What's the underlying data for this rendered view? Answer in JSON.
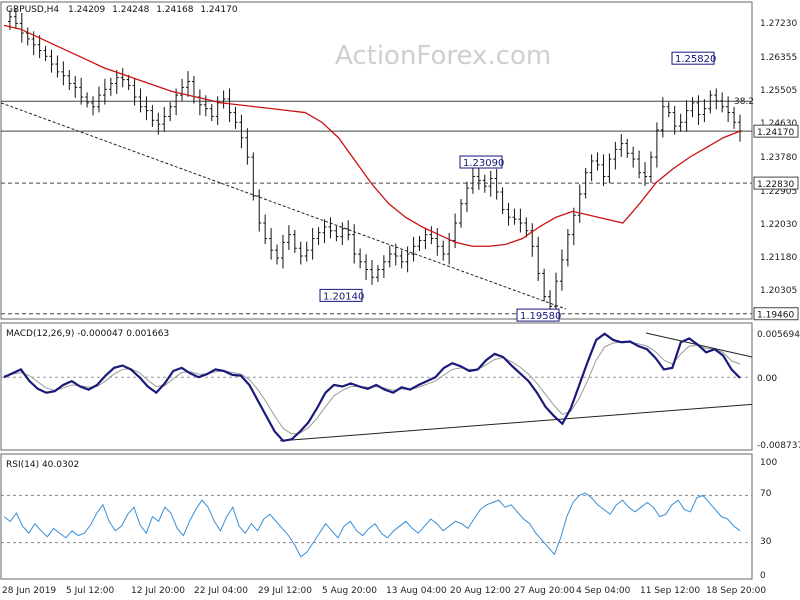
{
  "chart_data": [
    {
      "type": "candlestick",
      "title": "GBPUSD,H4",
      "ohlc_readout": [
        "1.24209",
        "1.24248",
        "1.24168",
        "1.24170"
      ],
      "watermark": "ActionForex.com",
      "ylim": [
        1.1935,
        1.2745
      ],
      "y_ticks": [
        "1.27230",
        "1.26355",
        "1.25505",
        "1.24630",
        "1.23780",
        "1.22905",
        "1.22030",
        "1.21180",
        "1.20305",
        "1.19460"
      ],
      "x_ticks": [
        "28 Jun 2019",
        "5 Jul 12:00",
        "12 Jul 20:00",
        "22 Jul 04:00",
        "29 Jul 12:00",
        "5 Aug 20:00",
        "13 Aug 04:00",
        "20 Aug 12:00",
        "27 Aug 20:00",
        "4 Sep 04:00",
        "11 Sep 12:00",
        "18 Sep 20:00"
      ],
      "price_boxes": [
        {
          "label": "1.24170",
          "value": 1.2417
        },
        {
          "label": "1.22830",
          "value": 1.2283
        },
        {
          "label": "1.19460",
          "value": 1.1946
        }
      ],
      "callouts": [
        {
          "label": "1.25820",
          "value": 1.2582
        },
        {
          "label": "1.23090",
          "value": 1.2309
        },
        {
          "label": "1.20140",
          "value": 1.2014
        },
        {
          "label": "1.19580",
          "value": 1.1958
        }
      ],
      "fib_label": "38.2",
      "horizontal_lines": [
        {
          "value": 1.2494,
          "style": "solid"
        },
        {
          "value": 1.2417,
          "style": "solid"
        },
        {
          "value": 1.2283,
          "style": "dashed"
        },
        {
          "value": 1.1946,
          "style": "dashed"
        }
      ],
      "close_path": [
        1.27,
        1.2712,
        1.2695,
        1.267,
        1.2655,
        1.264,
        1.2625,
        1.261,
        1.259,
        1.257,
        1.256,
        1.254,
        1.253,
        1.2505,
        1.249,
        1.248,
        1.251,
        1.2525,
        1.254,
        1.2555,
        1.255,
        1.2535,
        1.2505,
        1.248,
        1.247,
        1.2445,
        1.2435,
        1.2455,
        1.248,
        1.251,
        1.253,
        1.2545,
        1.2505,
        1.2485,
        1.2475,
        1.2455,
        1.249,
        1.25,
        1.2465,
        1.244,
        1.24,
        1.235,
        1.225,
        1.218,
        1.214,
        1.211,
        1.209,
        1.213,
        1.215,
        1.2115,
        1.2095,
        1.211,
        1.214,
        1.2155,
        1.217,
        1.216,
        1.2145,
        1.2165,
        1.215,
        1.21,
        1.208,
        1.206,
        1.204,
        1.206,
        1.208,
        1.21,
        1.2095,
        1.208,
        1.21,
        1.212,
        1.2135,
        1.215,
        1.214,
        1.212,
        1.21,
        1.2135,
        1.218,
        1.223,
        1.227,
        1.23,
        1.229,
        1.2275,
        1.2295,
        1.226,
        1.2215,
        1.2195,
        1.219,
        1.218,
        1.216,
        1.212,
        1.205,
        1.199,
        1.1965,
        1.203,
        1.2085,
        1.215,
        1.22,
        1.2255,
        1.231,
        1.234,
        1.233,
        1.23,
        1.2345,
        1.237,
        1.2385,
        1.236,
        1.2345,
        1.231,
        1.23,
        1.235,
        1.242,
        1.248,
        1.2465,
        1.243,
        1.244,
        1.247,
        1.249,
        1.246,
        1.2475,
        1.251,
        1.2495,
        1.248,
        1.2465,
        1.244,
        1.2417
      ],
      "moving_average": [
        1.269,
        1.268,
        1.266,
        1.264,
        1.262,
        1.26,
        1.258,
        1.2565,
        1.255,
        1.2535,
        1.252,
        1.251,
        1.25,
        1.249,
        1.2485,
        1.248,
        1.2475,
        1.247,
        1.2465,
        1.244,
        1.24,
        1.234,
        1.228,
        1.223,
        1.2195,
        1.217,
        1.215,
        1.213,
        1.212,
        1.212,
        1.2125,
        1.214,
        1.217,
        1.2195,
        1.221,
        1.22,
        1.219,
        1.218,
        1.223,
        1.2285,
        1.232,
        1.235,
        1.2375,
        1.24,
        1.2417
      ]
    },
    {
      "type": "line",
      "title": "MACD(12,26,9) -0.000047 0.001663",
      "ylim": [
        -0.008737,
        0.005694
      ],
      "y_ticks": [
        "0.005694",
        "0.00",
        "-0.008737"
      ],
      "current_value_label": "0.00",
      "zero_line": 0.0,
      "macd": [
        0.0,
        0.0005,
        0.001,
        -0.0005,
        -0.0015,
        -0.002,
        -0.0018,
        -0.001,
        -0.0005,
        -0.0012,
        -0.0016,
        -0.001,
        0.0002,
        0.0012,
        0.0015,
        0.001,
        0.0,
        -0.0012,
        -0.002,
        -0.0008,
        0.0008,
        0.0012,
        0.0005,
        0.0,
        0.0004,
        0.001,
        0.0008,
        0.0003,
        0.0002,
        -0.001,
        -0.003,
        -0.005,
        -0.007,
        -0.0082,
        -0.008,
        -0.007,
        -0.0058,
        -0.004,
        -0.002,
        -0.001,
        -0.0012,
        -0.0008,
        -0.0012,
        -0.0015,
        -0.001,
        -0.0016,
        -0.002,
        -0.0013,
        -0.0016,
        -0.001,
        -0.0005,
        0.0,
        0.0012,
        0.0018,
        0.0014,
        0.0008,
        0.001,
        0.0022,
        0.003,
        0.0026,
        0.0015,
        0.0005,
        -0.0005,
        -0.002,
        -0.0038,
        -0.005,
        -0.006,
        -0.004,
        -0.001,
        0.002,
        0.0048,
        0.0056,
        0.0048,
        0.0045,
        0.0046,
        0.004,
        0.0036,
        0.0025,
        0.001,
        0.0012,
        0.0045,
        0.005,
        0.0042,
        0.0032,
        0.0036,
        0.0028,
        0.001,
        -0.0001
      ],
      "signal": [
        0.0002,
        0.0004,
        0.0006,
        0.0002,
        -0.0006,
        -0.0014,
        -0.0017,
        -0.0014,
        -0.001,
        -0.0011,
        -0.0013,
        -0.0012,
        -0.0005,
        0.0004,
        0.001,
        0.0011,
        0.0006,
        -0.0004,
        -0.0012,
        -0.0011,
        -0.0002,
        0.0006,
        0.0007,
        0.0004,
        0.0004,
        0.0007,
        0.0008,
        0.0006,
        0.0004,
        -0.0003,
        -0.0016,
        -0.0032,
        -0.005,
        -0.0066,
        -0.0073,
        -0.0072,
        -0.0065,
        -0.0053,
        -0.0038,
        -0.0024,
        -0.0017,
        -0.0012,
        -0.0012,
        -0.0013,
        -0.0012,
        -0.0014,
        -0.0017,
        -0.0015,
        -0.0016,
        -0.0013,
        -0.0009,
        -0.0005,
        0.0003,
        0.001,
        0.0012,
        0.001,
        0.001,
        0.0016,
        0.0023,
        0.0025,
        0.002,
        0.0013,
        0.0004,
        -0.0008,
        -0.0022,
        -0.0036,
        -0.0048,
        -0.0044,
        -0.0027,
        -0.0004,
        0.0022,
        0.0039,
        0.0044,
        0.0045,
        0.0045,
        0.0043,
        0.004,
        0.0033,
        0.0022,
        0.0017,
        0.003,
        0.004,
        0.0041,
        0.0037,
        0.0036,
        0.0032,
        0.0021,
        0.0017
      ]
    },
    {
      "type": "line",
      "title": "RSI(14) 40.0302",
      "ylim": [
        0,
        100
      ],
      "y_ticks": [
        "100",
        "70",
        "30",
        "0"
      ],
      "levels": [
        70,
        30
      ],
      "rsi": [
        52,
        48,
        55,
        44,
        38,
        46,
        40,
        35,
        42,
        38,
        34,
        40,
        36,
        38,
        45,
        55,
        62,
        48,
        40,
        44,
        54,
        60,
        45,
        38,
        52,
        48,
        60,
        55,
        42,
        36,
        48,
        58,
        66,
        60,
        48,
        40,
        52,
        60,
        44,
        38,
        46,
        40,
        50,
        54,
        48,
        42,
        36,
        28,
        18,
        22,
        30,
        38,
        46,
        40,
        34,
        44,
        48,
        40,
        36,
        42,
        46,
        38,
        34,
        40,
        44,
        48,
        42,
        38,
        44,
        50,
        46,
        40,
        44,
        48,
        46,
        42,
        50,
        58,
        62,
        64,
        66,
        60,
        62,
        56,
        50,
        46,
        38,
        32,
        26,
        20,
        34,
        52,
        64,
        70,
        72,
        68,
        62,
        58,
        54,
        62,
        66,
        60,
        56,
        60,
        64,
        60,
        52,
        54,
        62,
        66,
        58,
        56,
        68,
        70,
        64,
        58,
        52,
        50,
        44,
        40
      ]
    }
  ]
}
